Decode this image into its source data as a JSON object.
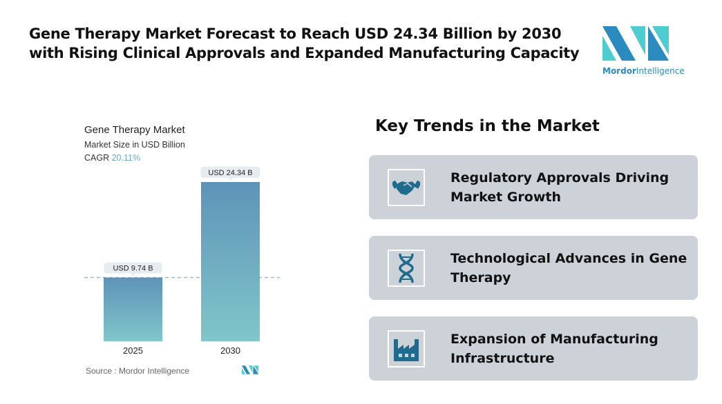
{
  "title": "Gene Therapy Market Forecast to Reach USD 24.34 Billion by 2030 with Rising Clinical Approvals and Expanded Manufacturing Capacity",
  "logo": {
    "brand_bold": "Mordor",
    "brand_rest": "Intelligence",
    "colors": [
      "#2b8bbf",
      "#4ecdd0"
    ]
  },
  "chart_data": {
    "type": "bar",
    "title": "Gene Therapy Market",
    "subtitle": "Market Size in USD Billion",
    "cagr_label": "CAGR",
    "cagr_value": "20.11%",
    "categories": [
      "2025",
      "2030"
    ],
    "values": [
      9.74,
      24.34
    ],
    "data_labels": [
      "USD 9.74 B",
      "USD 24.34 B"
    ],
    "ylim": [
      0,
      24.34
    ],
    "grid": false,
    "reference_line": "dashed at 2025 value",
    "bar_gradient": [
      "#5e93b8",
      "#80c6ca"
    ],
    "source": "Source :  Mordor Intelligence"
  },
  "trends": {
    "heading": "Key Trends in the Market",
    "items": [
      {
        "label": "Regulatory Approvals Driving Market Growth",
        "icon": "handshake-icon"
      },
      {
        "label": "Technological Advances in Gene Therapy",
        "icon": "dna-icon"
      },
      {
        "label": "Expansion of Manufacturing Infrastructure",
        "icon": "factory-icon"
      }
    ],
    "icon_color": "#1f6b8e",
    "card_color": "#cdd2d9"
  }
}
